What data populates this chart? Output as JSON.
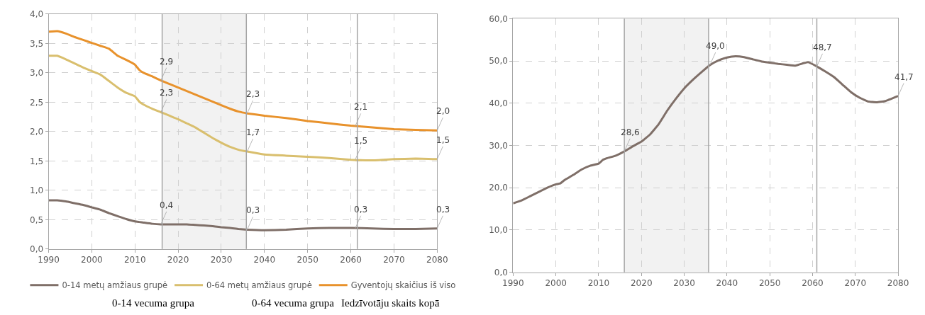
{
  "chart_data": [
    {
      "type": "line",
      "legend": "bottom",
      "grid": true,
      "line_style": "solid",
      "marker": "none",
      "xlim": [
        1990,
        2080
      ],
      "xticks": [
        1990,
        2000,
        2010,
        2020,
        2030,
        2040,
        2050,
        2060,
        2070,
        2080
      ],
      "ylim": [
        0,
        4
      ],
      "yticks": [
        {
          "value": 0,
          "label": "0,0"
        },
        {
          "value": 0.5,
          "label": "0,5"
        },
        {
          "value": 1,
          "label": "1,0"
        },
        {
          "value": 1.5,
          "label": "1,5"
        },
        {
          "value": 2,
          "label": "2,0"
        },
        {
          "value": 2.5,
          "label": "2,5"
        },
        {
          "value": 3,
          "label": "3,0"
        },
        {
          "value": 3.5,
          "label": "3,5"
        },
        {
          "value": 4,
          "label": "4,0"
        }
      ],
      "x": [
        1990,
        1992,
        1994,
        1996,
        1998,
        2000,
        2002,
        2004,
        2006,
        2008,
        2010,
        2011,
        2012,
        2014,
        2016,
        2018,
        2020,
        2022,
        2024,
        2026,
        2028,
        2030,
        2032,
        2034,
        2036,
        2040,
        2045,
        2050,
        2055,
        2060,
        2065,
        2070,
        2075,
        2080
      ],
      "series": [
        {
          "name": "0-14 metų amžiaus grupė",
          "color": "#7f6f68",
          "values": [
            0.83,
            0.83,
            0.81,
            0.78,
            0.75,
            0.71,
            0.67,
            0.61,
            0.56,
            0.51,
            0.47,
            0.46,
            0.45,
            0.43,
            0.42,
            0.42,
            0.42,
            0.42,
            0.41,
            0.4,
            0.39,
            0.37,
            0.36,
            0.34,
            0.33,
            0.32,
            0.33,
            0.35,
            0.36,
            0.36,
            0.35,
            0.34,
            0.34,
            0.35
          ]
        },
        {
          "name": "0-64 metų amžiaus grupė",
          "color": "#d9bf6e",
          "values": [
            3.29,
            3.29,
            3.23,
            3.16,
            3.09,
            3.03,
            2.97,
            2.86,
            2.75,
            2.66,
            2.6,
            2.51,
            2.46,
            2.39,
            2.33,
            2.27,
            2.21,
            2.14,
            2.07,
            1.98,
            1.89,
            1.81,
            1.74,
            1.69,
            1.66,
            1.61,
            1.59,
            1.57,
            1.55,
            1.52,
            1.51,
            1.53,
            1.54,
            1.53
          ]
        },
        {
          "name": "Gyventojų skaičius iš viso",
          "color": "#e8922c",
          "values": [
            3.7,
            3.71,
            3.67,
            3.61,
            3.56,
            3.51,
            3.46,
            3.41,
            3.29,
            3.22,
            3.14,
            3.05,
            3.0,
            2.94,
            2.87,
            2.81,
            2.75,
            2.69,
            2.63,
            2.57,
            2.51,
            2.45,
            2.39,
            2.34,
            2.31,
            2.27,
            2.23,
            2.18,
            2.14,
            2.1,
            2.07,
            2.04,
            2.03,
            2.02
          ]
        }
      ],
      "bands": [
        {
          "axis": "x",
          "from": 2016.3,
          "to": 2035.8,
          "color": "#f2f2f2"
        }
      ],
      "ref_lines": [
        {
          "axis": "x",
          "value": 2016.3,
          "color": "#a6a6a6"
        },
        {
          "axis": "x",
          "value": 2035.8,
          "color": "#a6a6a6"
        },
        {
          "axis": "x",
          "value": 2061.5,
          "color": "#a6a6a6"
        }
      ],
      "annotations": [
        {
          "text": "2,9",
          "x": 2016,
          "y": 2.87
        },
        {
          "text": "2,3",
          "x": 2016,
          "y": 2.33
        },
        {
          "text": "0,4",
          "x": 2016,
          "y": 0.42
        },
        {
          "text": "2,3",
          "x": 2036,
          "y": 2.31
        },
        {
          "text": "1,7",
          "x": 2036,
          "y": 1.66
        },
        {
          "text": "0,3",
          "x": 2036,
          "y": 0.33
        },
        {
          "text": "2,1",
          "x": 2061,
          "y": 2.09
        },
        {
          "text": "1,5",
          "x": 2061,
          "y": 1.52
        },
        {
          "text": "0,3",
          "x": 2061,
          "y": 0.35
        },
        {
          "text": "2,0",
          "x": 2080,
          "y": 2.02
        },
        {
          "text": "1,5",
          "x": 2080,
          "y": 1.53
        },
        {
          "text": "0,3",
          "x": 2080,
          "y": 0.35
        },
        "0-14 vecuma grupa",
        "0-64 vecuma grupa",
        "Iedzīvotāju skaits kopā"
      ]
    },
    {
      "type": "line",
      "legend": false,
      "grid": true,
      "line_style": "solid",
      "marker": "none",
      "xlim": [
        1990,
        2080
      ],
      "xticks": [
        1990,
        2000,
        2010,
        2020,
        2030,
        2040,
        2050,
        2060,
        2070,
        2080
      ],
      "ylim": [
        0,
        60
      ],
      "yticks": [
        {
          "value": 0,
          "label": "0,0"
        },
        {
          "value": 10,
          "label": "10,0"
        },
        {
          "value": 20,
          "label": "20,0"
        },
        {
          "value": 30,
          "label": "30,0"
        },
        {
          "value": 40,
          "label": "40,0"
        },
        {
          "value": 50,
          "label": "50,0"
        },
        {
          "value": 60,
          "label": "60,0"
        }
      ],
      "x": [
        1990,
        1992,
        1994,
        1996,
        1998,
        2000,
        2001,
        2002,
        2004,
        2006,
        2008,
        2010,
        2011,
        2012,
        2014,
        2016,
        2018,
        2020,
        2022,
        2024,
        2026,
        2028,
        2030,
        2032,
        2034,
        2036,
        2038,
        2040,
        2042,
        2044,
        2046,
        2048,
        2050,
        2052,
        2054,
        2056,
        2058,
        2059,
        2061,
        2063,
        2065,
        2067,
        2069,
        2071,
        2073,
        2075,
        2077,
        2080
      ],
      "series": [
        {
          "color": "#7f6f68",
          "values": [
            16.3,
            17.0,
            18.0,
            19.0,
            20.0,
            20.8,
            21.0,
            21.8,
            23.0,
            24.3,
            25.2,
            25.7,
            26.6,
            27.0,
            27.6,
            28.6,
            29.8,
            30.9,
            32.6,
            35.0,
            38.2,
            41.0,
            43.5,
            45.5,
            47.3,
            49.0,
            50.1,
            50.8,
            51.1,
            50.9,
            50.4,
            49.9,
            49.6,
            49.3,
            49.1,
            48.9,
            49.5,
            49.7,
            48.7,
            47.5,
            46.2,
            44.4,
            42.6,
            41.3,
            40.4,
            40.2,
            40.5,
            41.7
          ]
        }
      ],
      "bands": [
        {
          "axis": "x",
          "from": 2016,
          "to": 2035.7,
          "color": "#f2f2f2"
        }
      ],
      "ref_lines": [
        {
          "axis": "x",
          "value": 2016,
          "color": "#a6a6a6"
        },
        {
          "axis": "x",
          "value": 2035.7,
          "color": "#a6a6a6"
        },
        {
          "axis": "x",
          "value": 2061,
          "color": "#a6a6a6"
        }
      ],
      "annotations": [
        {
          "text": "28,6",
          "x": 2016,
          "y": 28.6
        },
        {
          "text": "49,0",
          "x": 2036,
          "y": 49.0
        },
        {
          "text": "48,7",
          "x": 2061,
          "y": 48.7
        },
        {
          "text": "41,7",
          "x": 2080,
          "y": 41.7
        }
      ]
    }
  ]
}
